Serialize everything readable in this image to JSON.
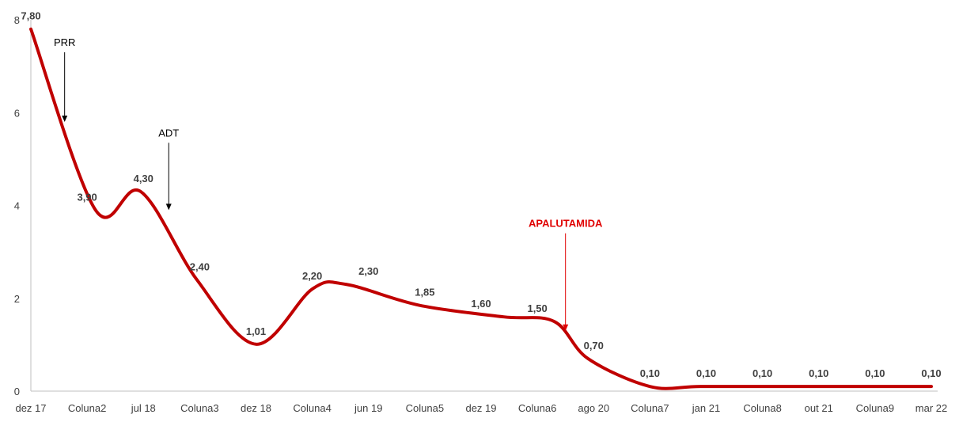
{
  "chart_data": {
    "type": "line",
    "smooth": true,
    "categories": [
      "dez 17",
      "Coluna2",
      "jul  18",
      "Coluna3",
      "dez 18",
      "Coluna4",
      "jun 19",
      "Coluna5",
      "dez 19",
      "Coluna6",
      "ago 20",
      "Coluna7",
      "jan 21",
      "Coluna8",
      "out 21",
      "Coluna9",
      "mar 22"
    ],
    "x_positions": [
      0,
      1.15,
      1.95,
      2.95,
      4,
      5,
      5.6,
      6.9,
      8.4,
      9.3,
      9.9,
      11,
      11.9,
      13.4,
      14.2,
      15.4,
      16
    ],
    "values": [
      7.8,
      3.9,
      4.3,
      2.4,
      1.01,
      2.2,
      2.3,
      1.85,
      1.6,
      1.5,
      0.7,
      0.1,
      0.1,
      0.1,
      0.1,
      0.1,
      0.1
    ],
    "labels": [
      "7,80",
      "3,90",
      "4,30",
      "2,40",
      "1,01",
      "2,20",
      "2,30",
      "1,85",
      "1,60",
      "1,50",
      "0,70",
      "0,10",
      "0,10",
      "0,10",
      "0,10",
      "0,10",
      "0,10"
    ],
    "ylim": [
      0,
      8
    ],
    "yticks": [
      "0",
      "2",
      "4",
      "6",
      "8"
    ],
    "ytick_values": [
      0,
      2,
      4,
      6,
      8
    ],
    "line_color": "#c00000",
    "grid": false,
    "annotations": [
      {
        "text": "PRR",
        "x": 0.6,
        "y_top": 7.3,
        "y_bottom": 5.8,
        "color": "#000000"
      },
      {
        "text": "ADT",
        "x": 2.45,
        "y_top": 5.35,
        "y_bottom": 3.9,
        "color": "#000000"
      },
      {
        "text": "APALUTAMIDA",
        "x": 9.5,
        "y_top": 3.4,
        "y_bottom": 1.3,
        "color": "#e00000"
      }
    ]
  }
}
